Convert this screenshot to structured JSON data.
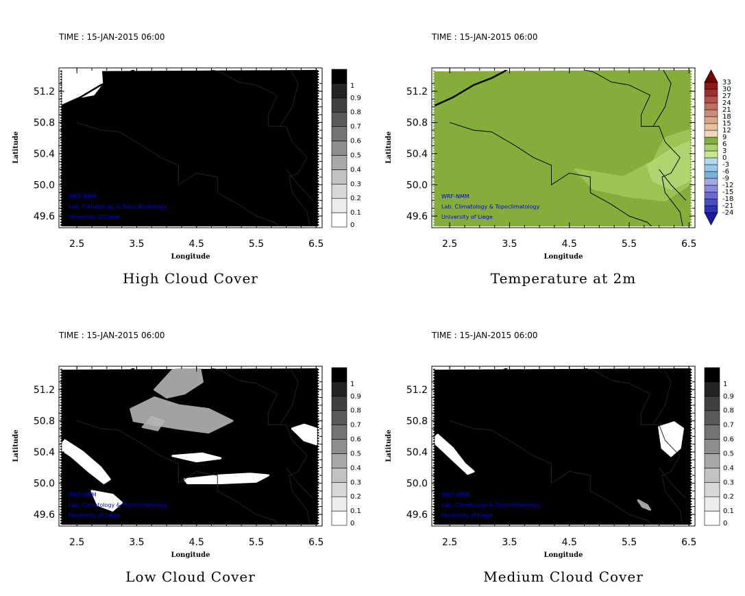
{
  "chart_data": [
    {
      "type": "heatmap",
      "id": "high",
      "time_label": "TIME : 15-JAN-2015 06:00",
      "title": "High Cloud Cover",
      "xlabel": "Longitude",
      "ylabel": "Latitude",
      "xlim": [
        2.2,
        6.6
      ],
      "ylim": [
        49.45,
        51.5
      ],
      "xticks": [
        "2.5",
        "3.5",
        "4.5",
        "5.5",
        "6.5"
      ],
      "yticks": [
        "49.6",
        "50.0",
        "50.4",
        "50.8",
        "51.2"
      ],
      "colorbar": {
        "labels": [
          "0",
          "0.1",
          "0.2",
          "0.3",
          "0.4",
          "0.5",
          "0.6",
          "0.7",
          "0.8",
          "0.9",
          "1"
        ],
        "colors": [
          "#ffffff",
          "#ececec",
          "#d8d8d8",
          "#c2c2c2",
          "#a8a8a8",
          "#8e8e8e",
          "#747474",
          "#5a5a5a",
          "#404040",
          "#242424",
          "#000000"
        ]
      },
      "credits": [
        "WRF-NMM",
        "Lab. Climatology & Topoclimatology",
        "University of Liege"
      ],
      "field_color": "#000000",
      "features": [
        {
          "type": "clear",
          "points": [
            [
              2.2,
              51.5
            ],
            [
              2.9,
              51.5
            ],
            [
              2.92,
              51.3
            ],
            [
              2.78,
              51.16
            ],
            [
              2.5,
              51.12
            ],
            [
              2.3,
              51.05
            ],
            [
              2.2,
              51.0
            ]
          ]
        }
      ]
    },
    {
      "type": "heatmap",
      "id": "temp",
      "time_label": "TIME : 15-JAN-2015 06:00",
      "title": "Temperature at 2m",
      "xlabel": "Longitude",
      "ylabel": "Latitude",
      "xlim": [
        2.2,
        6.6
      ],
      "ylim": [
        49.45,
        51.5
      ],
      "xticks": [
        "2.5",
        "3.5",
        "4.5",
        "5.5",
        "6.5"
      ],
      "yticks": [
        "49.6",
        "50.0",
        "50.4",
        "50.8",
        "51.2"
      ],
      "colorbar": {
        "labels": [
          "-24",
          "-21",
          "-18",
          "-15",
          "-12",
          "-9",
          "-6",
          "-3",
          "0",
          "3",
          "6",
          "9",
          "12",
          "15",
          "18",
          "21",
          "24",
          "27",
          "30",
          "33"
        ],
        "colors": [
          "#1a1aa0",
          "#3232b4",
          "#4c4cc4",
          "#6a6ad2",
          "#8a8ade",
          "#a6a6e8",
          "#78b0d8",
          "#98c8e8",
          "#b4d8ee",
          "#c8e690",
          "#a8d070",
          "#80b040",
          "#f0d8c0",
          "#e8c0a0",
          "#d8a888",
          "#c88c78",
          "#c07060",
          "#b45050",
          "#a03030",
          "#8c1818",
          "#780000"
        ]
      },
      "credits": [
        "WRF-NMM",
        "Lab. Climatology & Topoclimatology",
        "University of Liege"
      ],
      "field_color": "#84ad3a",
      "features": [
        {
          "type": "light",
          "points": [
            [
              4.6,
              50.2
            ],
            [
              5.4,
              50.1
            ],
            [
              5.9,
              50.3
            ],
            [
              6.1,
              50.6
            ],
            [
              6.5,
              50.7
            ],
            [
              6.5,
              50.0
            ],
            [
              6.1,
              49.8
            ],
            [
              5.5,
              49.85
            ],
            [
              4.9,
              49.95
            ]
          ]
        },
        {
          "type": "lighter",
          "points": [
            [
              5.8,
              50.25
            ],
            [
              6.2,
              50.45
            ],
            [
              6.5,
              50.55
            ],
            [
              6.5,
              50.05
            ],
            [
              6.2,
              49.95
            ],
            [
              5.9,
              50.05
            ]
          ]
        }
      ]
    },
    {
      "type": "heatmap",
      "id": "low",
      "time_label": "TIME : 15-JAN-2015 06:00",
      "title": "Low Cloud Cover",
      "xlabel": "Longitude",
      "ylabel": "Latitude",
      "xlim": [
        2.2,
        6.6
      ],
      "ylim": [
        49.45,
        51.5
      ],
      "xticks": [
        "2.5",
        "3.5",
        "4.5",
        "5.5",
        "6.5"
      ],
      "yticks": [
        "49.6",
        "50.0",
        "50.4",
        "50.8",
        "51.2"
      ],
      "colorbar": {
        "labels": [
          "0",
          "0.1",
          "0.2",
          "0.3",
          "0.4",
          "0.5",
          "0.6",
          "0.7",
          "0.8",
          "0.9",
          "1"
        ],
        "colors": [
          "#ffffff",
          "#ececec",
          "#d8d8d8",
          "#c2c2c2",
          "#a8a8a8",
          "#8e8e8e",
          "#747474",
          "#5a5a5a",
          "#404040",
          "#242424",
          "#000000"
        ]
      },
      "credits": [
        "WRF-NMM",
        "Lab. Climatology & Topoclimatology",
        "University of Liege"
      ],
      "field_color": "#000000",
      "features": [
        {
          "type": "clear",
          "points": [
            [
              2.3,
              50.55
            ],
            [
              2.6,
              50.4
            ],
            [
              2.9,
              50.2
            ],
            [
              3.05,
              50.05
            ],
            [
              2.95,
              50.0
            ],
            [
              2.7,
              50.15
            ],
            [
              2.4,
              50.35
            ],
            [
              2.2,
              50.45
            ]
          ]
        },
        {
          "type": "clear",
          "points": [
            [
              2.75,
              49.9
            ],
            [
              3.1,
              49.85
            ],
            [
              3.25,
              49.75
            ],
            [
              3.1,
              49.65
            ],
            [
              2.85,
              49.72
            ]
          ]
        },
        {
          "type": "mid",
          "points": [
            [
              3.4,
              50.95
            ],
            [
              3.8,
              51.1
            ],
            [
              4.2,
              51.0
            ],
            [
              4.7,
              50.95
            ],
            [
              5.1,
              50.8
            ],
            [
              4.7,
              50.65
            ],
            [
              4.2,
              50.7
            ],
            [
              3.8,
              50.75
            ],
            [
              3.45,
              50.8
            ]
          ]
        },
        {
          "type": "mid",
          "points": [
            [
              3.8,
              51.2
            ],
            [
              4.1,
              51.45
            ],
            [
              4.55,
              51.5
            ],
            [
              4.6,
              51.3
            ],
            [
              4.3,
              51.15
            ],
            [
              4.0,
              51.1
            ]
          ]
        },
        {
          "type": "clear",
          "points": [
            [
              4.3,
              50.05
            ],
            [
              4.9,
              50.1
            ],
            [
              5.4,
              50.12
            ],
            [
              5.7,
              50.1
            ],
            [
              5.5,
              50.02
            ],
            [
              4.9,
              50.0
            ],
            [
              4.35,
              50.0
            ]
          ]
        },
        {
          "type": "clear",
          "points": [
            [
              4.1,
              50.35
            ],
            [
              4.6,
              50.38
            ],
            [
              4.9,
              50.32
            ],
            [
              4.5,
              50.28
            ]
          ]
        },
        {
          "type": "clear",
          "points": [
            [
              6.1,
              50.7
            ],
            [
              6.3,
              50.75
            ],
            [
              6.5,
              50.7
            ],
            [
              6.5,
              50.5
            ],
            [
              6.3,
              50.55
            ]
          ]
        },
        {
          "type": "mid",
          "points": [
            [
              3.6,
              50.72
            ],
            [
              3.75,
              50.85
            ],
            [
              3.95,
              50.8
            ],
            [
              3.85,
              50.68
            ]
          ]
        }
      ]
    },
    {
      "type": "heatmap",
      "id": "medium",
      "time_label": "TIME : 15-JAN-2015 06:00",
      "title": "Medium Cloud Cover",
      "xlabel": "Longitude",
      "ylabel": "Latitude",
      "xlim": [
        2.2,
        6.6
      ],
      "ylim": [
        49.45,
        51.5
      ],
      "xticks": [
        "2.5",
        "3.5",
        "4.5",
        "5.5",
        "6.5"
      ],
      "yticks": [
        "49.6",
        "50.0",
        "50.4",
        "50.8",
        "51.2"
      ],
      "colorbar": {
        "labels": [
          "0",
          "0.1",
          "0.2",
          "0.3",
          "0.4",
          "0.5",
          "0.6",
          "0.7",
          "0.8",
          "0.9",
          "1"
        ],
        "colors": [
          "#ffffff",
          "#ececec",
          "#d8d8d8",
          "#c2c2c2",
          "#a8a8a8",
          "#8e8e8e",
          "#747474",
          "#5a5a5a",
          "#404040",
          "#242424",
          "#000000"
        ]
      },
      "credits": [
        "WRF-NMM",
        "Lab. Climatology & Topoclimatology",
        "University of Liege"
      ],
      "field_color": "#000000",
      "features": [
        {
          "type": "clear",
          "points": [
            [
              2.3,
              50.62
            ],
            [
              2.55,
              50.45
            ],
            [
              2.75,
              50.25
            ],
            [
              2.9,
              50.15
            ],
            [
              2.8,
              50.12
            ],
            [
              2.55,
              50.3
            ],
            [
              2.3,
              50.48
            ],
            [
              2.2,
              50.55
            ]
          ]
        },
        {
          "type": "clear",
          "points": [
            [
              6.0,
              50.72
            ],
            [
              6.25,
              50.78
            ],
            [
              6.4,
              50.7
            ],
            [
              6.35,
              50.45
            ],
            [
              6.2,
              50.35
            ],
            [
              6.05,
              50.45
            ]
          ]
        },
        {
          "type": "mid",
          "points": [
            [
              5.65,
              49.78
            ],
            [
              5.8,
              49.72
            ],
            [
              5.85,
              49.66
            ],
            [
              5.72,
              49.7
            ]
          ]
        }
      ]
    }
  ]
}
